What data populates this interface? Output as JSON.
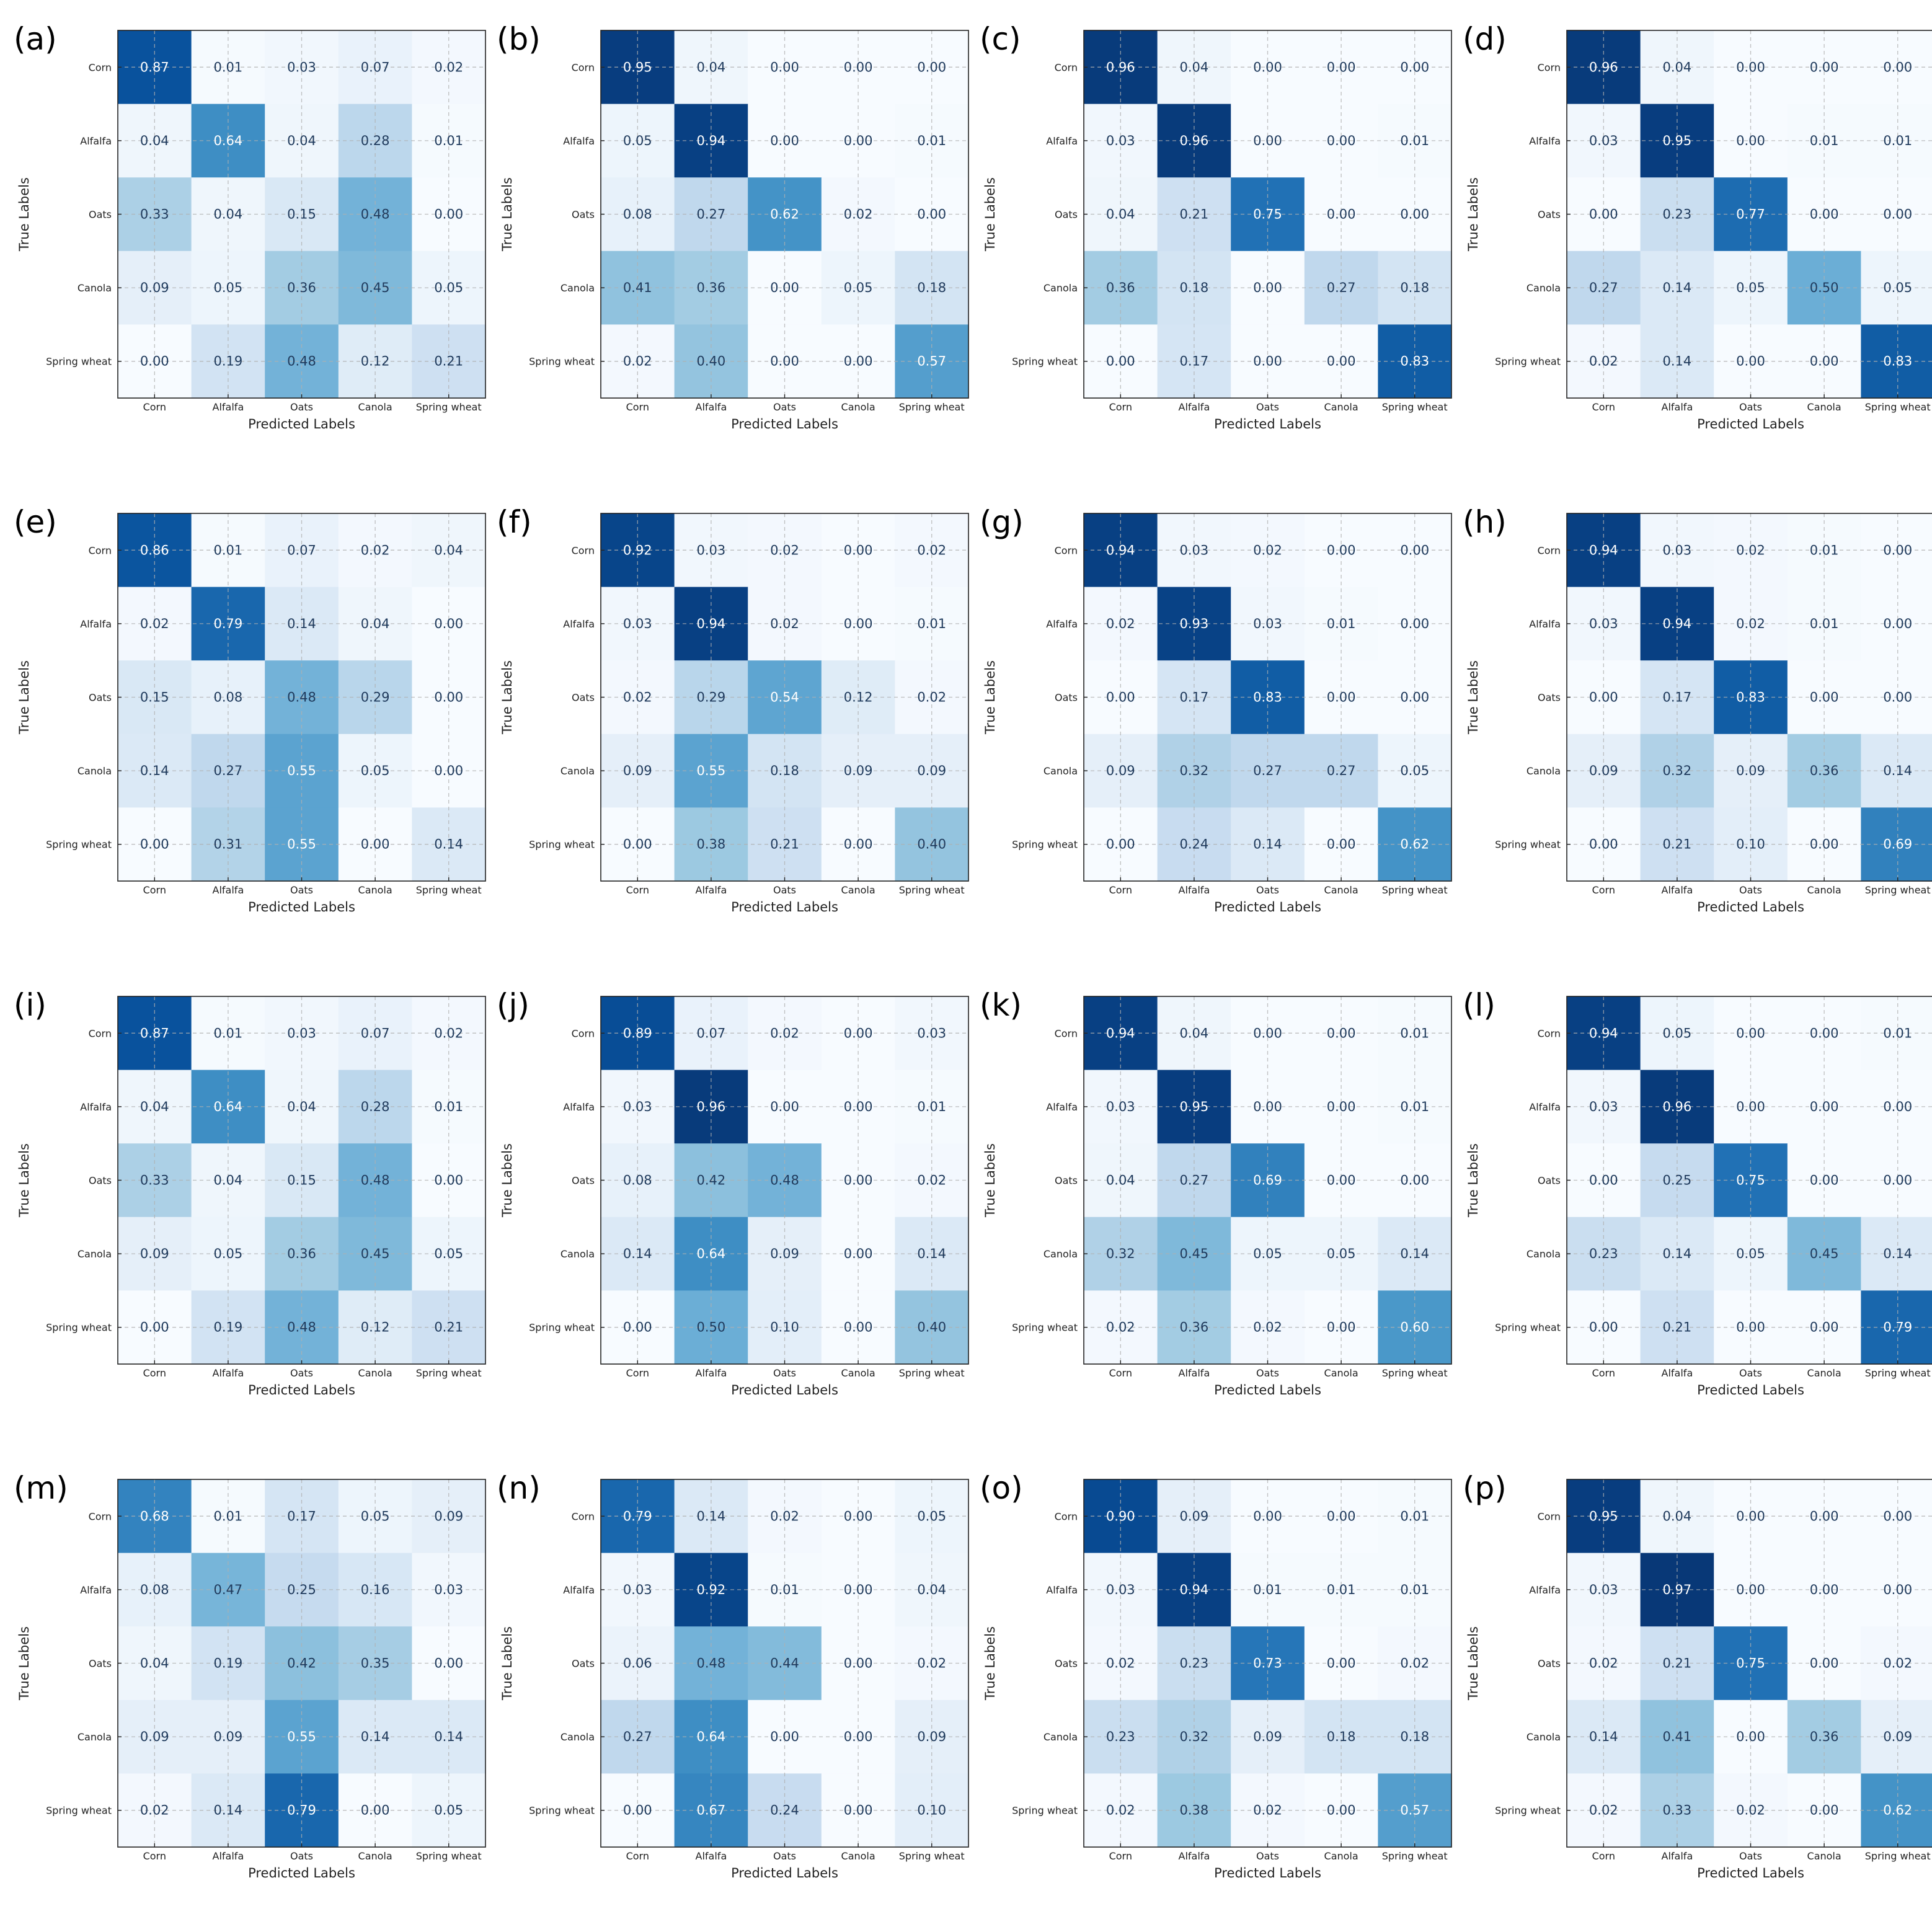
{
  "chart_data": [
    {
      "type": "heatmap",
      "panel_label": "(a)",
      "xlabel": "Predicted Labels",
      "ylabel": "True Labels",
      "x_categories": [
        "Corn",
        "Alfalfa",
        "Oats",
        "Canola",
        "Spring wheat"
      ],
      "y_categories": [
        "Corn",
        "Alfalfa",
        "Oats",
        "Canola",
        "Spring wheat"
      ],
      "values": [
        [
          "0.87",
          "0.01",
          "0.03",
          "0.07",
          "0.02"
        ],
        [
          "0.04",
          "0.64",
          "0.04",
          "0.28",
          "0.01"
        ],
        [
          "0.33",
          "0.04",
          "0.15",
          "0.48",
          "0.00"
        ],
        [
          "0.09",
          "0.05",
          "0.36",
          "0.45",
          "0.05"
        ],
        [
          "0.00",
          "0.19",
          "0.48",
          "0.12",
          "0.21"
        ]
      ],
      "colormap": "Blues",
      "grid": true
    },
    {
      "type": "heatmap",
      "panel_label": "(b)",
      "xlabel": "Predicted Labels",
      "ylabel": "True Labels",
      "x_categories": [
        "Corn",
        "Alfalfa",
        "Oats",
        "Canola",
        "Spring wheat"
      ],
      "y_categories": [
        "Corn",
        "Alfalfa",
        "Oats",
        "Canola",
        "Spring wheat"
      ],
      "values": [
        [
          "0.95",
          "0.04",
          "0.00",
          "0.00",
          "0.00"
        ],
        [
          "0.05",
          "0.94",
          "0.00",
          "0.00",
          "0.01"
        ],
        [
          "0.08",
          "0.27",
          "0.62",
          "0.02",
          "0.00"
        ],
        [
          "0.41",
          "0.36",
          "0.00",
          "0.05",
          "0.18"
        ],
        [
          "0.02",
          "0.40",
          "0.00",
          "0.00",
          "0.57"
        ]
      ],
      "colormap": "Blues",
      "grid": true
    },
    {
      "type": "heatmap",
      "panel_label": "(c)",
      "xlabel": "Predicted Labels",
      "ylabel": "True Labels",
      "x_categories": [
        "Corn",
        "Alfalfa",
        "Oats",
        "Canola",
        "Spring wheat"
      ],
      "y_categories": [
        "Corn",
        "Alfalfa",
        "Oats",
        "Canola",
        "Spring wheat"
      ],
      "values": [
        [
          "0.96",
          "0.04",
          "0.00",
          "0.00",
          "0.00"
        ],
        [
          "0.03",
          "0.96",
          "0.00",
          "0.00",
          "0.01"
        ],
        [
          "0.04",
          "0.21",
          "0.75",
          "0.00",
          "0.00"
        ],
        [
          "0.36",
          "0.18",
          "0.00",
          "0.27",
          "0.18"
        ],
        [
          "0.00",
          "0.17",
          "0.00",
          "0.00",
          "0.83"
        ]
      ],
      "colormap": "Blues",
      "grid": true
    },
    {
      "type": "heatmap",
      "panel_label": "(d)",
      "xlabel": "Predicted Labels",
      "ylabel": "True Labels",
      "x_categories": [
        "Corn",
        "Alfalfa",
        "Oats",
        "Canola",
        "Spring wheat"
      ],
      "y_categories": [
        "Corn",
        "Alfalfa",
        "Oats",
        "Canola",
        "Spring wheat"
      ],
      "values": [
        [
          "0.96",
          "0.04",
          "0.00",
          "0.00",
          "0.00"
        ],
        [
          "0.03",
          "0.95",
          "0.00",
          "0.01",
          "0.01"
        ],
        [
          "0.00",
          "0.23",
          "0.77",
          "0.00",
          "0.00"
        ],
        [
          "0.27",
          "0.14",
          "0.05",
          "0.50",
          "0.05"
        ],
        [
          "0.02",
          "0.14",
          "0.00",
          "0.00",
          "0.83"
        ]
      ],
      "colormap": "Blues",
      "grid": true
    },
    {
      "type": "heatmap",
      "panel_label": "(e)",
      "xlabel": "Predicted Labels",
      "ylabel": "True Labels",
      "x_categories": [
        "Corn",
        "Alfalfa",
        "Oats",
        "Canola",
        "Spring wheat"
      ],
      "y_categories": [
        "Corn",
        "Alfalfa",
        "Oats",
        "Canola",
        "Spring wheat"
      ],
      "values": [
        [
          "0.86",
          "0.01",
          "0.07",
          "0.02",
          "0.04"
        ],
        [
          "0.02",
          "0.79",
          "0.14",
          "0.04",
          "0.00"
        ],
        [
          "0.15",
          "0.08",
          "0.48",
          "0.29",
          "0.00"
        ],
        [
          "0.14",
          "0.27",
          "0.55",
          "0.05",
          "0.00"
        ],
        [
          "0.00",
          "0.31",
          "0.55",
          "0.00",
          "0.14"
        ]
      ],
      "colormap": "Blues",
      "grid": true
    },
    {
      "type": "heatmap",
      "panel_label": "(f)",
      "xlabel": "Predicted Labels",
      "ylabel": "True Labels",
      "x_categories": [
        "Corn",
        "Alfalfa",
        "Oats",
        "Canola",
        "Spring wheat"
      ],
      "y_categories": [
        "Corn",
        "Alfalfa",
        "Oats",
        "Canola",
        "Spring wheat"
      ],
      "values": [
        [
          "0.92",
          "0.03",
          "0.02",
          "0.00",
          "0.02"
        ],
        [
          "0.03",
          "0.94",
          "0.02",
          "0.00",
          "0.01"
        ],
        [
          "0.02",
          "0.29",
          "0.54",
          "0.12",
          "0.02"
        ],
        [
          "0.09",
          "0.55",
          "0.18",
          "0.09",
          "0.09"
        ],
        [
          "0.00",
          "0.38",
          "0.21",
          "0.00",
          "0.40"
        ]
      ],
      "colormap": "Blues",
      "grid": true
    },
    {
      "type": "heatmap",
      "panel_label": "(g)",
      "xlabel": "Predicted Labels",
      "ylabel": "True Labels",
      "x_categories": [
        "Corn",
        "Alfalfa",
        "Oats",
        "Canola",
        "Spring wheat"
      ],
      "y_categories": [
        "Corn",
        "Alfalfa",
        "Oats",
        "Canola",
        "Spring wheat"
      ],
      "values": [
        [
          "0.94",
          "0.03",
          "0.02",
          "0.00",
          "0.00"
        ],
        [
          "0.02",
          "0.93",
          "0.03",
          "0.01",
          "0.00"
        ],
        [
          "0.00",
          "0.17",
          "0.83",
          "0.00",
          "0.00"
        ],
        [
          "0.09",
          "0.32",
          "0.27",
          "0.27",
          "0.05"
        ],
        [
          "0.00",
          "0.24",
          "0.14",
          "0.00",
          "0.62"
        ]
      ],
      "colormap": "Blues",
      "grid": true
    },
    {
      "type": "heatmap",
      "panel_label": "(h)",
      "xlabel": "Predicted Labels",
      "ylabel": "True Labels",
      "x_categories": [
        "Corn",
        "Alfalfa",
        "Oats",
        "Canola",
        "Spring wheat"
      ],
      "y_categories": [
        "Corn",
        "Alfalfa",
        "Oats",
        "Canola",
        "Spring wheat"
      ],
      "values": [
        [
          "0.94",
          "0.03",
          "0.02",
          "0.01",
          "0.00"
        ],
        [
          "0.03",
          "0.94",
          "0.02",
          "0.01",
          "0.00"
        ],
        [
          "0.00",
          "0.17",
          "0.83",
          "0.00",
          "0.00"
        ],
        [
          "0.09",
          "0.32",
          "0.09",
          "0.36",
          "0.14"
        ],
        [
          "0.00",
          "0.21",
          "0.10",
          "0.00",
          "0.69"
        ]
      ],
      "colormap": "Blues",
      "grid": true
    },
    {
      "type": "heatmap",
      "panel_label": "(i)",
      "xlabel": "Predicted Labels",
      "ylabel": "True Labels",
      "x_categories": [
        "Corn",
        "Alfalfa",
        "Oats",
        "Canola",
        "Spring wheat"
      ],
      "y_categories": [
        "Corn",
        "Alfalfa",
        "Oats",
        "Canola",
        "Spring wheat"
      ],
      "values": [
        [
          "0.87",
          "0.01",
          "0.03",
          "0.07",
          "0.02"
        ],
        [
          "0.04",
          "0.64",
          "0.04",
          "0.28",
          "0.01"
        ],
        [
          "0.33",
          "0.04",
          "0.15",
          "0.48",
          "0.00"
        ],
        [
          "0.09",
          "0.05",
          "0.36",
          "0.45",
          "0.05"
        ],
        [
          "0.00",
          "0.19",
          "0.48",
          "0.12",
          "0.21"
        ]
      ],
      "colormap": "Blues",
      "grid": true
    },
    {
      "type": "heatmap",
      "panel_label": "(j)",
      "xlabel": "Predicted Labels",
      "ylabel": "True Labels",
      "x_categories": [
        "Corn",
        "Alfalfa",
        "Oats",
        "Canola",
        "Spring wheat"
      ],
      "y_categories": [
        "Corn",
        "Alfalfa",
        "Oats",
        "Canola",
        "Spring wheat"
      ],
      "values": [
        [
          "0.89",
          "0.07",
          "0.02",
          "0.00",
          "0.03"
        ],
        [
          "0.03",
          "0.96",
          "0.00",
          "0.00",
          "0.01"
        ],
        [
          "0.08",
          "0.42",
          "0.48",
          "0.00",
          "0.02"
        ],
        [
          "0.14",
          "0.64",
          "0.09",
          "0.00",
          "0.14"
        ],
        [
          "0.00",
          "0.50",
          "0.10",
          "0.00",
          "0.40"
        ]
      ],
      "colormap": "Blues",
      "grid": true
    },
    {
      "type": "heatmap",
      "panel_label": "(k)",
      "xlabel": "Predicted Labels",
      "ylabel": "True Labels",
      "x_categories": [
        "Corn",
        "Alfalfa",
        "Oats",
        "Canola",
        "Spring wheat"
      ],
      "y_categories": [
        "Corn",
        "Alfalfa",
        "Oats",
        "Canola",
        "Spring wheat"
      ],
      "values": [
        [
          "0.94",
          "0.04",
          "0.00",
          "0.00",
          "0.01"
        ],
        [
          "0.03",
          "0.95",
          "0.00",
          "0.00",
          "0.01"
        ],
        [
          "0.04",
          "0.27",
          "0.69",
          "0.00",
          "0.00"
        ],
        [
          "0.32",
          "0.45",
          "0.05",
          "0.05",
          "0.14"
        ],
        [
          "0.02",
          "0.36",
          "0.02",
          "0.00",
          "0.60"
        ]
      ],
      "colormap": "Blues",
      "grid": true
    },
    {
      "type": "heatmap",
      "panel_label": "(l)",
      "xlabel": "Predicted Labels",
      "ylabel": "True Labels",
      "x_categories": [
        "Corn",
        "Alfalfa",
        "Oats",
        "Canola",
        "Spring wheat"
      ],
      "y_categories": [
        "Corn",
        "Alfalfa",
        "Oats",
        "Canola",
        "Spring wheat"
      ],
      "values": [
        [
          "0.94",
          "0.05",
          "0.00",
          "0.00",
          "0.01"
        ],
        [
          "0.03",
          "0.96",
          "0.00",
          "0.00",
          "0.00"
        ],
        [
          "0.00",
          "0.25",
          "0.75",
          "0.00",
          "0.00"
        ],
        [
          "0.23",
          "0.14",
          "0.05",
          "0.45",
          "0.14"
        ],
        [
          "0.00",
          "0.21",
          "0.00",
          "0.00",
          "0.79"
        ]
      ],
      "colormap": "Blues",
      "grid": true
    },
    {
      "type": "heatmap",
      "panel_label": "(m)",
      "xlabel": "Predicted Labels",
      "ylabel": "True Labels",
      "x_categories": [
        "Corn",
        "Alfalfa",
        "Oats",
        "Canola",
        "Spring wheat"
      ],
      "y_categories": [
        "Corn",
        "Alfalfa",
        "Oats",
        "Canola",
        "Spring wheat"
      ],
      "values": [
        [
          "0.68",
          "0.01",
          "0.17",
          "0.05",
          "0.09"
        ],
        [
          "0.08",
          "0.47",
          "0.25",
          "0.16",
          "0.03"
        ],
        [
          "0.04",
          "0.19",
          "0.42",
          "0.35",
          "0.00"
        ],
        [
          "0.09",
          "0.09",
          "0.55",
          "0.14",
          "0.14"
        ],
        [
          "0.02",
          "0.14",
          "0.79",
          "0.00",
          "0.05"
        ]
      ],
      "colormap": "Blues",
      "grid": true
    },
    {
      "type": "heatmap",
      "panel_label": "(n)",
      "xlabel": "Predicted Labels",
      "ylabel": "True Labels",
      "x_categories": [
        "Corn",
        "Alfalfa",
        "Oats",
        "Canola",
        "Spring wheat"
      ],
      "y_categories": [
        "Corn",
        "Alfalfa",
        "Oats",
        "Canola",
        "Spring wheat"
      ],
      "values": [
        [
          "0.79",
          "0.14",
          "0.02",
          "0.00",
          "0.05"
        ],
        [
          "0.03",
          "0.92",
          "0.01",
          "0.00",
          "0.04"
        ],
        [
          "0.06",
          "0.48",
          "0.44",
          "0.00",
          "0.02"
        ],
        [
          "0.27",
          "0.64",
          "0.00",
          "0.00",
          "0.09"
        ],
        [
          "0.00",
          "0.67",
          "0.24",
          "0.00",
          "0.10"
        ]
      ],
      "colormap": "Blues",
      "grid": true
    },
    {
      "type": "heatmap",
      "panel_label": "(o)",
      "xlabel": "Predicted Labels",
      "ylabel": "True Labels",
      "x_categories": [
        "Corn",
        "Alfalfa",
        "Oats",
        "Canola",
        "Spring wheat"
      ],
      "y_categories": [
        "Corn",
        "Alfalfa",
        "Oats",
        "Canola",
        "Spring wheat"
      ],
      "values": [
        [
          "0.90",
          "0.09",
          "0.00",
          "0.00",
          "0.01"
        ],
        [
          "0.03",
          "0.94",
          "0.01",
          "0.01",
          "0.01"
        ],
        [
          "0.02",
          "0.23",
          "0.73",
          "0.00",
          "0.02"
        ],
        [
          "0.23",
          "0.32",
          "0.09",
          "0.18",
          "0.18"
        ],
        [
          "0.02",
          "0.38",
          "0.02",
          "0.00",
          "0.57"
        ]
      ],
      "colormap": "Blues",
      "grid": true
    },
    {
      "type": "heatmap",
      "panel_label": "(p)",
      "xlabel": "Predicted Labels",
      "ylabel": "True Labels",
      "x_categories": [
        "Corn",
        "Alfalfa",
        "Oats",
        "Canola",
        "Spring wheat"
      ],
      "y_categories": [
        "Corn",
        "Alfalfa",
        "Oats",
        "Canola",
        "Spring wheat"
      ],
      "values": [
        [
          "0.95",
          "0.04",
          "0.00",
          "0.00",
          "0.00"
        ],
        [
          "0.03",
          "0.97",
          "0.00",
          "0.00",
          "0.00"
        ],
        [
          "0.02",
          "0.21",
          "0.75",
          "0.00",
          "0.02"
        ],
        [
          "0.14",
          "0.41",
          "0.00",
          "0.36",
          "0.09"
        ],
        [
          "0.02",
          "0.33",
          "0.02",
          "0.00",
          "0.62"
        ]
      ],
      "colormap": "Blues",
      "grid": true
    }
  ]
}
